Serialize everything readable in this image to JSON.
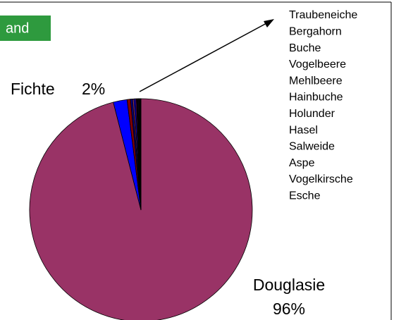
{
  "chart_data": {
    "type": "pie",
    "title": "and",
    "categories": [
      "Douglasie",
      "Fichte",
      "Traubeneiche",
      "Bergahorn",
      "Buche",
      "Vogelbeere",
      "Mehlbeere",
      "Hainbuche",
      "Holunder",
      "Hasel",
      "Salweide",
      "Aspe",
      "Vogelkirsche",
      "Esche"
    ],
    "values": [
      96,
      2,
      0.5,
      0.3,
      0.2,
      0.2,
      0.15,
      0.15,
      0.1,
      0.1,
      0.1,
      0.1,
      0.05,
      0.05
    ],
    "value_labels": [
      "96%",
      "2%",
      null,
      null,
      null,
      null,
      null,
      null,
      null,
      null,
      null,
      null,
      null,
      null
    ],
    "colors": [
      "#993366",
      "#0000ff",
      "#800000",
      "#000080",
      "#993366",
      "#0000ff",
      "#800080",
      "#000000",
      "#660066",
      "#333399",
      "#800000",
      "#000080",
      "#993366",
      "#0000ff"
    ]
  }
}
